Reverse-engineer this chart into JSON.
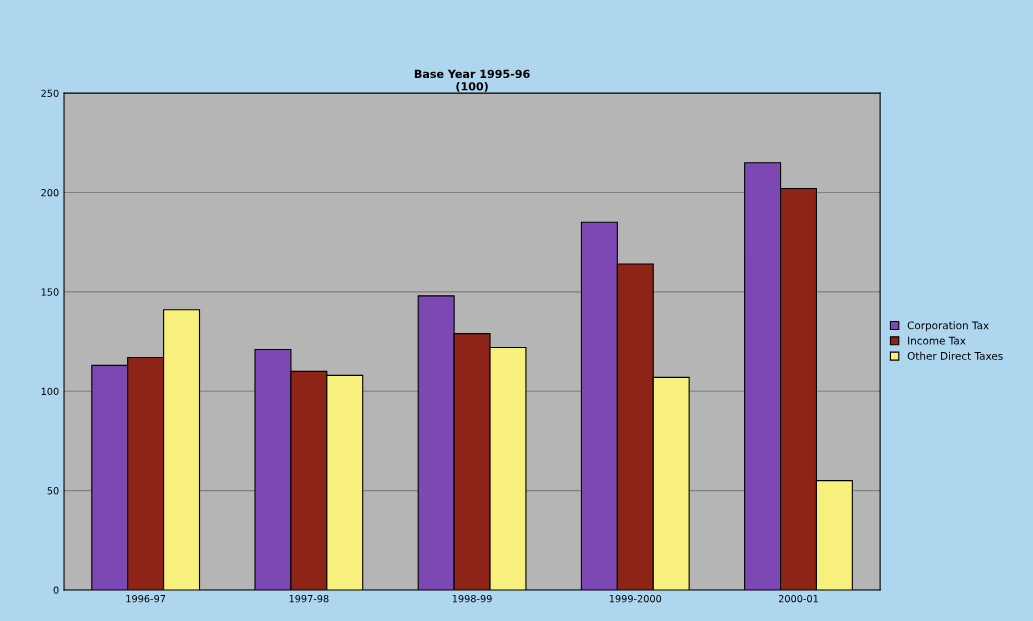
{
  "chart_data": {
    "type": "bar",
    "title": "Base Year 1995-96\n(100)",
    "categories": [
      "1996-97",
      "1997-98",
      "1998-99",
      "1999-2000",
      "2000-01"
    ],
    "series": [
      {
        "name": "Corporation Tax",
        "color": "#7d48b4",
        "values": [
          113,
          121,
          148,
          185,
          215
        ]
      },
      {
        "name": "Income Tax",
        "color": "#8e2418",
        "values": [
          117,
          110,
          129,
          164,
          202
        ]
      },
      {
        "name": "Other Direct Taxes",
        "color": "#f7f07c",
        "values": [
          141,
          108,
          122,
          107,
          55
        ]
      }
    ],
    "ylim": [
      0,
      250
    ],
    "yticks": [
      0,
      50,
      100,
      150,
      200,
      250
    ],
    "grid": "y",
    "legend": "right"
  }
}
